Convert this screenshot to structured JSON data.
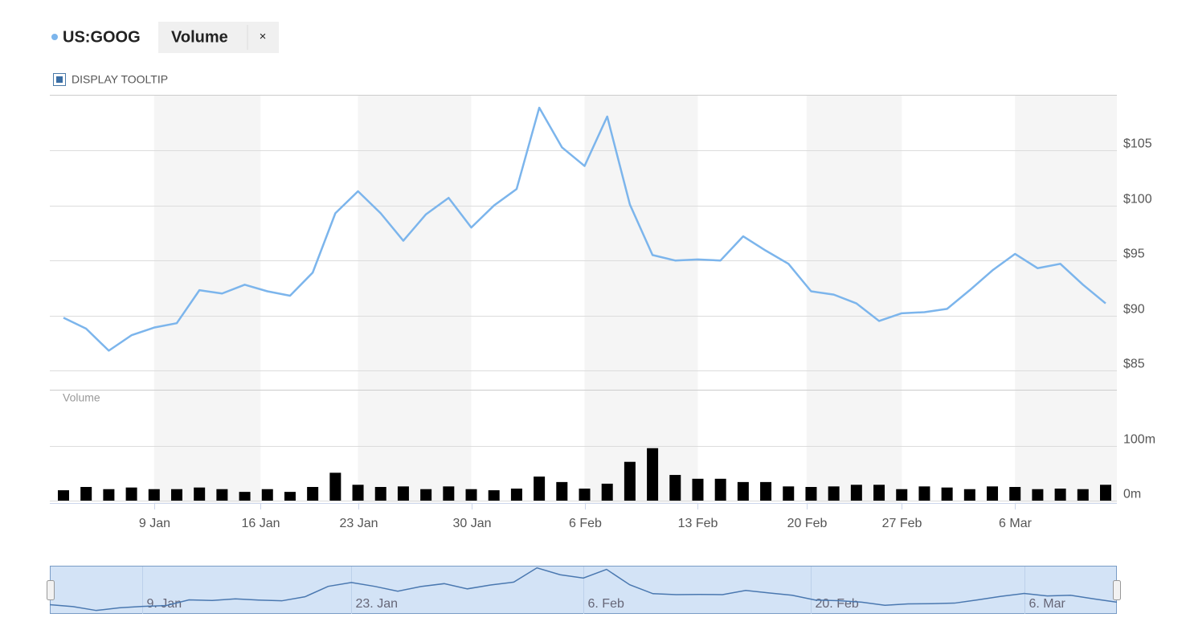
{
  "header": {
    "close": "×",
    "tooltip_toggle": "DISPLAY TOOLTIP"
  },
  "chart_data": [
    {
      "type": "line",
      "series": [
        {
          "name": "US:GOOG",
          "color": "#7cb5ec",
          "values": [
            89.8,
            88.8,
            86.8,
            88.2,
            88.9,
            89.3,
            92.3,
            92.0,
            92.8,
            92.2,
            91.8,
            93.9,
            99.3,
            101.3,
            99.3,
            96.8,
            99.2,
            100.7,
            98.0,
            100.0,
            101.5,
            108.9,
            105.3,
            103.6,
            108.1,
            100.1,
            95.5,
            95.0,
            95.1,
            95.0,
            97.2,
            95.9,
            94.7,
            92.2,
            91.9,
            91.1,
            89.5,
            90.2,
            90.3,
            90.6,
            92.3,
            94.1,
            95.6,
            94.3,
            94.7,
            92.8,
            91.1
          ]
        }
      ],
      "xlim": [
        0,
        46
      ],
      "xticks": [
        {
          "value": 4,
          "label": "9 Jan"
        },
        {
          "value": 8.7,
          "label": "16 Jan"
        },
        {
          "value": 13,
          "label": "23 Jan"
        },
        {
          "value": 18,
          "label": "30 Jan"
        },
        {
          "value": 23,
          "label": "6 Feb"
        },
        {
          "value": 28,
          "label": "13 Feb"
        },
        {
          "value": 32.8,
          "label": "20 Feb"
        },
        {
          "value": 37,
          "label": "27 Feb"
        },
        {
          "value": 42,
          "label": "6 Mar"
        }
      ],
      "ylim": [
        85,
        110
      ],
      "yticks": [
        {
          "value": 85,
          "label": "$85"
        },
        {
          "value": 90,
          "label": "$90"
        },
        {
          "value": 95,
          "label": "$95"
        },
        {
          "value": 100,
          "label": "$100"
        },
        {
          "value": 105,
          "label": "$105"
        }
      ],
      "grid": true
    },
    {
      "type": "bar",
      "series": [
        {
          "name": "Volume",
          "color": "#000000",
          "values": [
            19,
            25,
            21,
            24,
            21,
            21,
            24,
            21,
            16,
            21,
            16,
            25,
            51,
            29,
            25,
            26,
            21,
            26,
            21,
            19,
            22,
            44,
            34,
            22,
            31,
            71,
            96,
            47,
            40,
            40,
            34,
            34,
            26,
            25,
            26,
            29,
            29,
            21,
            26,
            24,
            21,
            26,
            25,
            21,
            22,
            21,
            29
          ]
        }
      ],
      "ylim": [
        0,
        200
      ],
      "yticks": [
        {
          "value": 0,
          "label": "0m"
        },
        {
          "value": 100,
          "label": "100m"
        }
      ],
      "grid": true
    },
    {
      "type": "navigator",
      "xticks": [
        {
          "value": 4,
          "label": "9. Jan"
        },
        {
          "value": 13,
          "label": "23. Jan"
        },
        {
          "value": 23,
          "label": "6. Feb"
        },
        {
          "value": 32.8,
          "label": "20. Feb"
        },
        {
          "value": 42,
          "label": "6. Mar"
        }
      ]
    }
  ]
}
